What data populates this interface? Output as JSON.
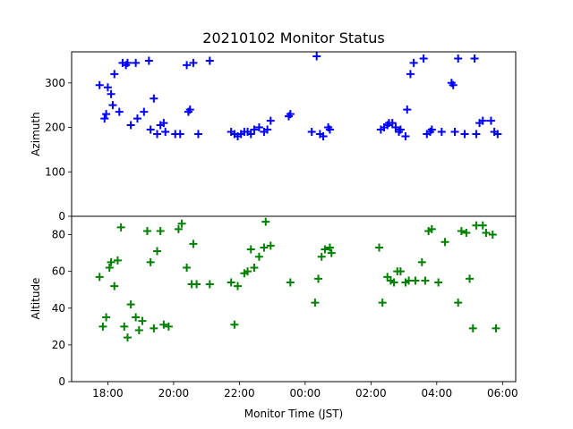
{
  "chart_data": {
    "type": "scatter",
    "title": "20210102 Monitor Status",
    "xlabel": "Monitor Time (JST)",
    "x_ticks": [
      "18:00",
      "20:00",
      "22:00",
      "00:00",
      "02:00",
      "04:00",
      "06:00"
    ],
    "x_tick_hours": [
      18,
      20,
      22,
      24,
      26,
      28,
      30
    ],
    "xlim_hours": [
      16.9,
      30.4
    ],
    "marker": "+",
    "panels": [
      {
        "name": "azimuth",
        "ylabel": "Azimuth",
        "ylim": [
          0,
          370
        ],
        "y_ticks": [
          0,
          100,
          200,
          300
        ],
        "color": "#0000ff",
        "series": [
          {
            "x": [
              17.75,
              17.9,
              17.95,
              18.0,
              18.1,
              18.15,
              18.2,
              18.35,
              18.45,
              18.55,
              18.6,
              18.7,
              18.85,
              18.9,
              19.1,
              19.25,
              19.3,
              19.4,
              19.5,
              19.6,
              19.7,
              19.75,
              20.05,
              20.2,
              20.4,
              20.45,
              20.5,
              20.6,
              20.75,
              21.1,
              21.75,
              21.85,
              21.95,
              22.05,
              22.15,
              22.25,
              22.35,
              22.45,
              22.6,
              22.75,
              22.85,
              22.95,
              23.5,
              23.55,
              24.2,
              24.35,
              24.45,
              24.55,
              24.7,
              24.75,
              26.3,
              26.4,
              26.5,
              26.55,
              26.65,
              26.75,
              26.85,
              26.9,
              27.05,
              27.1,
              27.2,
              27.3,
              27.6,
              27.7,
              27.8,
              27.85,
              28.15,
              28.45,
              28.5,
              28.55,
              28.65,
              28.85,
              29.15,
              29.2,
              29.3,
              29.4,
              29.65,
              29.75,
              29.85
            ],
            "y": [
              295,
              220,
              230,
              290,
              275,
              250,
              320,
              235,
              345,
              340,
              345,
              205,
              345,
              220,
              235,
              350,
              195,
              265,
              185,
              205,
              210,
              190,
              185,
              185,
              340,
              235,
              240,
              345,
              185,
              350,
              190,
              185,
              180,
              185,
              190,
              190,
              185,
              195,
              200,
              190,
              195,
              215,
              225,
              230,
              190,
              360,
              185,
              180,
              200,
              195,
              195,
              200,
              205,
              210,
              210,
              200,
              190,
              195,
              180,
              240,
              320,
              345,
              355,
              185,
              190,
              195,
              190,
              300,
              295,
              190,
              355,
              185,
              355,
              185,
              210,
              215,
              215,
              190,
              185
            ]
          }
        ]
      },
      {
        "name": "altitude",
        "ylabel": "Altitude",
        "ylim": [
          0,
          90
        ],
        "y_ticks": [
          0,
          20,
          40,
          60,
          80
        ],
        "color": "#008000",
        "series": [
          {
            "x": [
              17.75,
              17.85,
              17.95,
              18.05,
              18.1,
              18.2,
              18.3,
              18.4,
              18.5,
              18.6,
              18.7,
              18.85,
              18.95,
              19.05,
              19.2,
              19.3,
              19.4,
              19.5,
              19.6,
              19.7,
              19.85,
              20.15,
              20.25,
              20.4,
              20.55,
              20.6,
              20.7,
              21.1,
              21.75,
              21.85,
              21.95,
              22.15,
              22.25,
              22.35,
              22.45,
              22.6,
              22.75,
              22.8,
              22.95,
              23.55,
              24.3,
              24.4,
              24.5,
              24.6,
              24.75,
              24.8,
              26.25,
              26.35,
              26.5,
              26.6,
              26.7,
              26.8,
              26.9,
              27.05,
              27.15,
              27.35,
              27.55,
              27.65,
              27.75,
              27.85,
              28.05,
              28.25,
              28.65,
              28.75,
              28.9,
              29.0,
              29.1,
              29.2,
              29.4,
              29.5,
              29.7,
              29.8
            ],
            "y": [
              57,
              30,
              35,
              62,
              65,
              52,
              66,
              84,
              30,
              24,
              42,
              35,
              28,
              33,
              82,
              65,
              29,
              71,
              82,
              31,
              30,
              83,
              86,
              62,
              53,
              75,
              53,
              53,
              54,
              31,
              52,
              59,
              60,
              72,
              62,
              68,
              73,
              87,
              74,
              54,
              43,
              56,
              68,
              72,
              73,
              70,
              73,
              43,
              57,
              55,
              54,
              60,
              60,
              54,
              55,
              55,
              65,
              55,
              82,
              83,
              54,
              76,
              43,
              82,
              81,
              56,
              29,
              85,
              85,
              81,
              80,
              29
            ]
          }
        ]
      }
    ]
  }
}
